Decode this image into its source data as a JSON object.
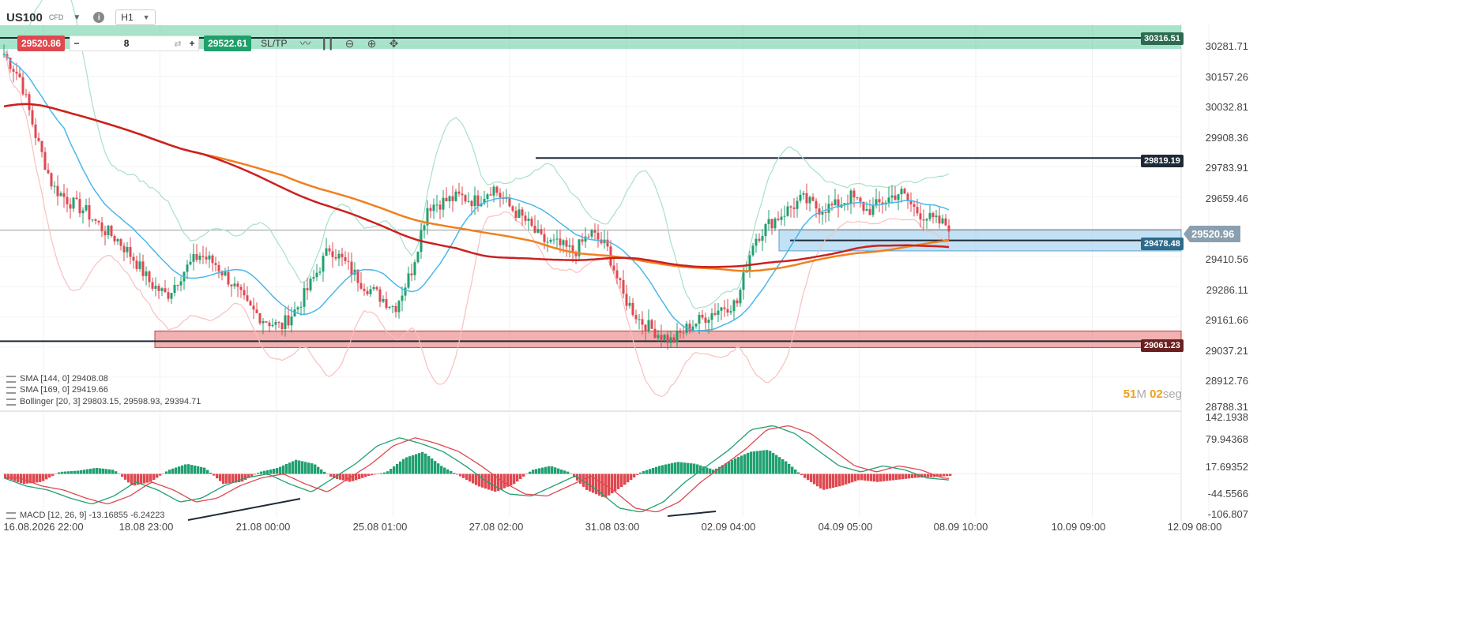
{
  "header": {
    "symbol": "US100",
    "symbol_type": "CFD",
    "timeframe": "H1"
  },
  "trade_bar": {
    "sell_price": "29520.86",
    "minus": "−",
    "quantity": "8",
    "plus": "+",
    "buy_price": "29522.61",
    "sltp_label": "SL/TP"
  },
  "icons": [
    "chevron-down-icon",
    "info-icon",
    "swap-icon",
    "line-chart-icon",
    "candles-icon",
    "zoom-out-icon",
    "zoom-in-icon",
    "move-icon"
  ],
  "price_axis": {
    "labels": [
      "30281.71",
      "30157.26",
      "30032.81",
      "29908.36",
      "29783.91",
      "29659.46",
      "29410.56",
      "29286.11",
      "29161.66",
      "29037.21",
      "28912.76",
      "28788.31"
    ]
  },
  "current_price": "29520.96",
  "level_tags": {
    "top": "30316.51",
    "resistance": "29819.19",
    "blue_zone": "29478.48",
    "red_zone": "29061.23"
  },
  "time_axis": {
    "labels": [
      "16.08.2026 22:00",
      "18.08 23:00",
      "21.08 00:00",
      "25.08 01:00",
      "27.08 02:00",
      "31.08 03:00",
      "02.09 04:00",
      "04.09 05:00",
      "08.09 10:00",
      "10.09 09:00",
      "12.09 08:00"
    ]
  },
  "macd_axis": {
    "labels": [
      "142.1938",
      "79.94368",
      "17.69352",
      "-44.5566",
      "-106.807"
    ]
  },
  "legend": {
    "sma1": "SMA [144, 0] 29408.08",
    "sma2": "SMA [169, 0] 29419.66",
    "bollinger": "Bollinger [20, 3] 29803.15, 29598.93, 29394.71",
    "macd": "MACD [12, 26, 9] -13.16855 -6.24223"
  },
  "countdown": {
    "value1": "51",
    "unit1": "M",
    "value2": "02",
    "unit2": "seg"
  },
  "colors": {
    "up_candle": "#20a070",
    "down_candle": "#e04850",
    "sma144": "#cc2020",
    "sma169": "#f08020",
    "bollinger_mid": "#4ab8e8",
    "bollinger_upper": "#a8e0c8",
    "bollinger_lower": "#f8c0c0",
    "zone_green": "#3cc48a",
    "zone_blue": "#90c8ec",
    "zone_red": "#e87070"
  },
  "chart_data": {
    "type": "candlestick",
    "title": "US100",
    "timeframe": "H1",
    "ylim": [
      28788.31,
      30316.51
    ],
    "x": [
      "16.08.2026 22:00",
      "18.08 23:00",
      "21.08 00:00",
      "25.08 01:00",
      "27.08 02:00",
      "31.08 03:00",
      "02.09 04:00",
      "04.09 05:00",
      "08.09 10:00"
    ],
    "close_path": [
      30250,
      30150,
      29900,
      29700,
      29640,
      29600,
      29530,
      29480,
      29400,
      29300,
      29250,
      29350,
      29420,
      29380,
      29300,
      29200,
      29150,
      29120,
      29200,
      29320,
      29450,
      29380,
      29300,
      29250,
      29200,
      29350,
      29620,
      29640,
      29660,
      29640,
      29700,
      29620,
      29560,
      29480,
      29460,
      29430,
      29510,
      29450,
      29250,
      29150,
      29100,
      29060,
      29120,
      29160,
      29200,
      29220,
      29480,
      29550,
      29600,
      29650,
      29610,
      29620,
      29660,
      29600,
      29640,
      29680,
      29600,
      29560,
      29540
    ],
    "levels": [
      {
        "label": "30316.51",
        "value": 30316.51
      },
      {
        "label": "29819.19",
        "value": 29819.19
      },
      {
        "label": "29478.48",
        "value": 29478.48
      },
      {
        "label": "29061.23",
        "value": 29061.23
      }
    ],
    "indicators": [
      {
        "name": "SMA [144, 0]",
        "last": 29408.08
      },
      {
        "name": "SMA [169, 0]",
        "last": 29419.66
      },
      {
        "name": "Bollinger [20, 3]",
        "upper": 29803.15,
        "mid": 29598.93,
        "lower": 29394.71
      }
    ],
    "macd": {
      "params": "[12, 26, 9]",
      "macd_last": -13.16855,
      "signal_last": -6.24223,
      "ylim": [
        -106.807,
        142.1938
      ],
      "hist_path": [
        -10,
        -25,
        -20,
        5,
        8,
        15,
        10,
        -30,
        -20,
        10,
        25,
        15,
        -25,
        -20,
        5,
        15,
        35,
        25,
        -10,
        -20,
        -5,
        5,
        40,
        55,
        20,
        -5,
        -30,
        -45,
        -25,
        10,
        20,
        5,
        -40,
        -60,
        -30,
        5,
        20,
        30,
        25,
        10,
        35,
        55,
        60,
        30,
        -10,
        -40,
        -30,
        -15,
        -20,
        -15,
        -10,
        -8,
        -5
      ],
      "line_path": [
        -10,
        -30,
        -40,
        -60,
        -75,
        -55,
        -20,
        -40,
        -70,
        -60,
        -30,
        -10,
        0,
        -25,
        -45,
        -10,
        25,
        70,
        90,
        75,
        55,
        20,
        -20,
        -50,
        -55,
        -30,
        -5,
        -40,
        -85,
        -95,
        -70,
        -20,
        20,
        60,
        110,
        120,
        100,
        60,
        20,
        5,
        20,
        10,
        -10,
        -15
      ]
    }
  }
}
